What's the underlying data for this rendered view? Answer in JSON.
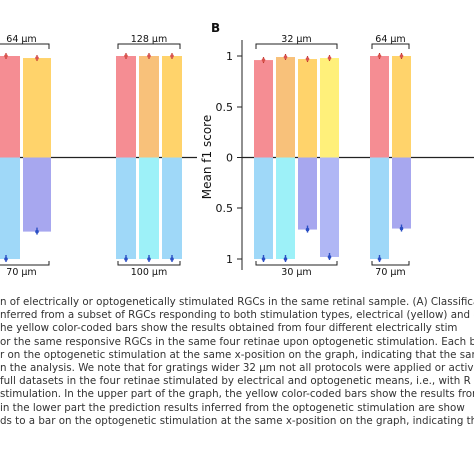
{
  "figure": {
    "panel_label_b": "B",
    "ylabel": "Mean f1 score",
    "ytick_labels": [
      "1",
      "0.5",
      "0",
      "0.5",
      "1"
    ]
  },
  "chart_data": [
    {
      "type": "bar",
      "panel": "A",
      "ylim": [
        -1,
        1
      ],
      "groups": [
        {
          "top_label": "64 μm",
          "bottom_label": "70 μm",
          "electrical": [
            {
              "value": 1.0,
              "color": "#f58d93"
            },
            {
              "value": 0.98,
              "color": "#ffd36b"
            }
          ],
          "optogenetic": [
            {
              "value": 1.0,
              "color": "#9fd8f8"
            },
            {
              "value": 0.73,
              "color": "#a7a7ef"
            }
          ]
        },
        {
          "top_label": "128 μm",
          "bottom_label": "100 μm",
          "electrical": [
            {
              "value": 1.0,
              "color": "#f58d93"
            },
            {
              "value": 1.0,
              "color": "#f8c17a"
            },
            {
              "value": 1.0,
              "color": "#ffd36b"
            }
          ],
          "optogenetic": [
            {
              "value": 1.0,
              "color": "#9fd8f8"
            },
            {
              "value": 1.0,
              "color": "#9df1f8"
            },
            {
              "value": 1.0,
              "color": "#9fd8f8"
            }
          ]
        }
      ]
    },
    {
      "type": "bar",
      "panel": "B",
      "ylim": [
        -1,
        1
      ],
      "ylabel": "Mean f1 score",
      "groups": [
        {
          "top_label": "32 μm",
          "bottom_label": "30 μm",
          "electrical": [
            {
              "value": 0.96,
              "color": "#f58d93"
            },
            {
              "value": 0.99,
              "color": "#f8c17a"
            },
            {
              "value": 0.97,
              "color": "#ffd36b"
            },
            {
              "value": 0.98,
              "color": "#fff07a"
            }
          ],
          "optogenetic": [
            {
              "value": 1.0,
              "color": "#9fd8f8"
            },
            {
              "value": 1.0,
              "color": "#9df1f8"
            },
            {
              "value": 0.71,
              "color": "#a7a7ef"
            },
            {
              "value": 0.98,
              "color": "#b0b7f5"
            }
          ]
        },
        {
          "top_label": "64 μm",
          "bottom_label": "70 μm",
          "electrical": [
            {
              "value": 1.0,
              "color": "#f58d93"
            },
            {
              "value": 1.0,
              "color": "#ffd36b"
            }
          ],
          "optogenetic": [
            {
              "value": 1.0,
              "color": "#9fd8f8"
            },
            {
              "value": 0.7,
              "color": "#a7a7ef"
            }
          ]
        }
      ]
    }
  ],
  "caption_lines": [
    "n of electrically or optogenetically stimulated RGCs in the same retinal sample. (A) Classifica",
    "nferred from a subset of RGCs responding to both stimulation types, electrical (yellow) and o",
    "he yellow color-coded bars show the results obtained from four different electrically stim",
    "or the same responsive RGCs in the same four retinae upon optogenetic stimulation. Each b",
    "r on the optogenetic stimulation at the same x-position on the graph, indicating that the sam",
    "n the analysis. We note that for gratings wider 32 μm not all protocols were applied or activat",
    " full datasets in the four retinae stimulated by electrical and optogenetic means, i.e., with R",
    "stimulation. In the upper part of the graph, the yellow color-coded bars show the results from",
    "in the lower part the prediction results inferred from the optogenetic stimulation are show",
    "ds to a bar on the optogenetic stimulation at the same x-position on the graph, indicating tha"
  ]
}
